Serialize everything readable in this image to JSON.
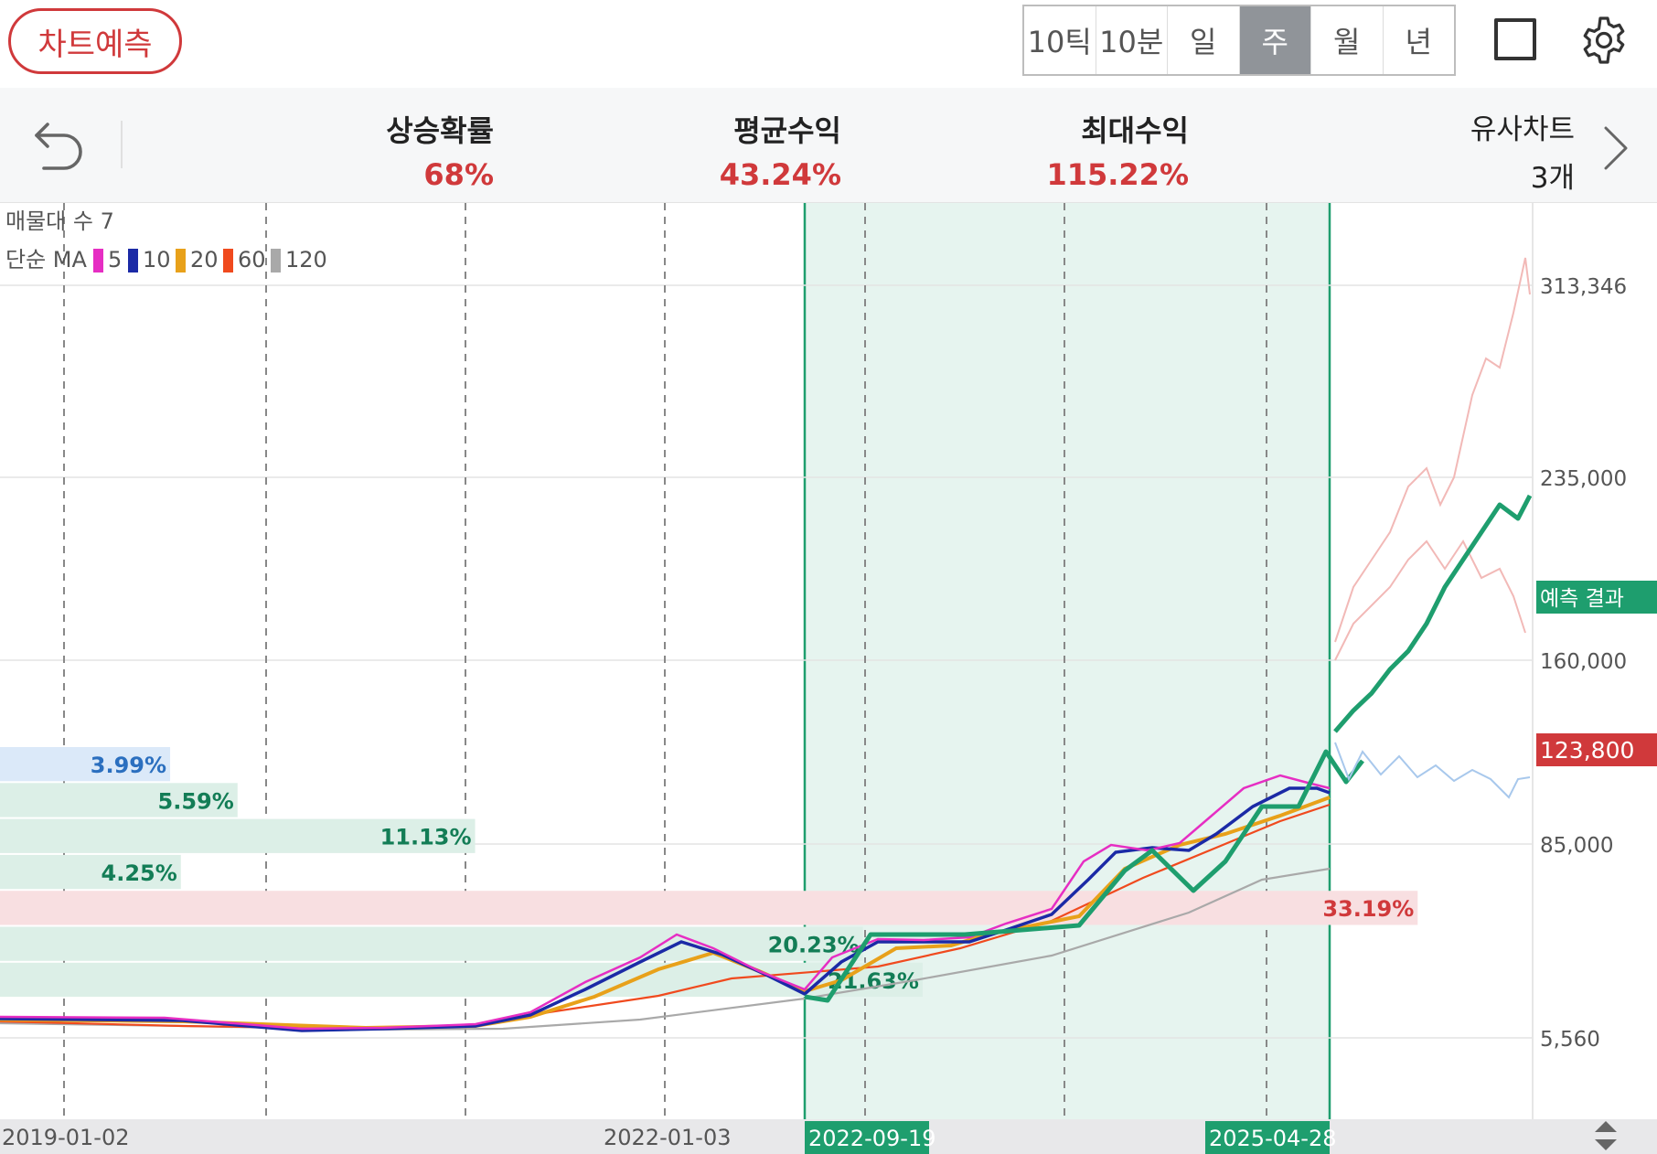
{
  "toolbar": {
    "predict_label": "차트예측",
    "periods": [
      "10틱",
      "10분",
      "일",
      "주",
      "월",
      "년"
    ],
    "active_period": "주"
  },
  "stats": {
    "rise_prob": {
      "label": "상승확률",
      "value": "68%"
    },
    "avg_return": {
      "label": "평균수익",
      "value": "43.24%"
    },
    "max_return": {
      "label": "최대수익",
      "value": "115.22%"
    },
    "similar": {
      "label": "유사차트",
      "value": "3개"
    }
  },
  "legend": {
    "volume_profile": "매물대 수 7",
    "ma_title": "단순 MA",
    "items": [
      {
        "label": "5",
        "color": "#e62ec3"
      },
      {
        "label": "10",
        "color": "#1b2aa6"
      },
      {
        "label": "20",
        "color": "#e8a11a"
      },
      {
        "label": "60",
        "color": "#f04a1e"
      },
      {
        "label": "120",
        "color": "#a9a9a9"
      }
    ]
  },
  "colors": {
    "accent_red": "#d0393b",
    "predict_green": "#1e9e6e",
    "highlight_bg": "#e6f4ef"
  },
  "chart_data": {
    "type": "line",
    "y_ticks": [
      "313,346",
      "235,000",
      "160,000",
      "85,000",
      "5,560"
    ],
    "x_ticks": [
      "2019-01-02",
      "2022-01-03"
    ],
    "highlight_start": "2022-09-19",
    "highlight_end": "2025-04-28",
    "current_price": "123,800",
    "prediction_label": "예측 결과",
    "volume_profile": [
      {
        "label": "3.99%",
        "width": 0.111,
        "kind": "blue"
      },
      {
        "label": "5.59%",
        "width": 0.155,
        "kind": "green"
      },
      {
        "label": "11.13%",
        "width": 0.31,
        "kind": "green"
      },
      {
        "label": "4.25%",
        "width": 0.118,
        "kind": "green"
      },
      {
        "label": "33.19%",
        "width": 0.925,
        "kind": "red"
      },
      {
        "label": "20.23%",
        "width": 0.563,
        "kind": "green"
      },
      {
        "label": "21.63%",
        "width": 0.602,
        "kind": "green"
      }
    ]
  }
}
